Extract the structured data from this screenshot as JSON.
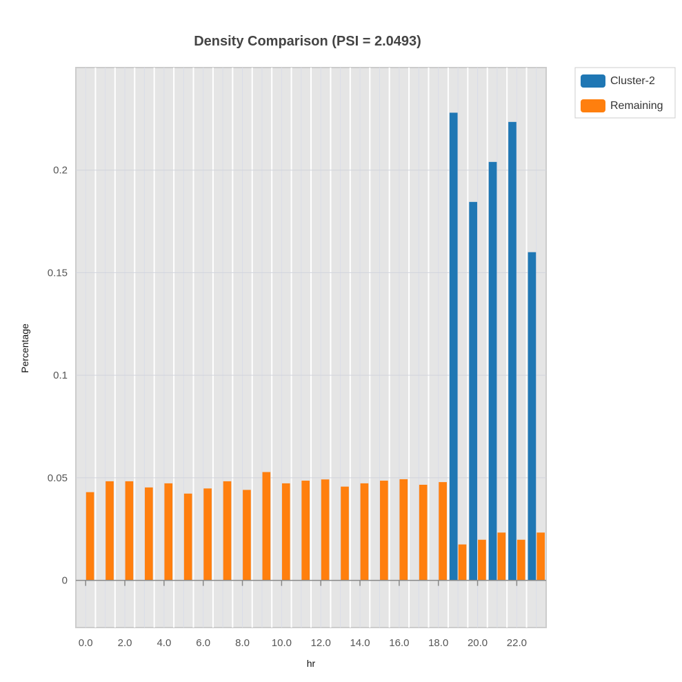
{
  "chart_data": {
    "type": "bar",
    "title": "Density Comparison (PSI = 2.0493)",
    "xlabel": "hr",
    "ylabel": "Percentage",
    "categories": [
      0,
      1,
      2,
      3,
      4,
      5,
      6,
      7,
      8,
      9,
      10,
      11,
      12,
      13,
      14,
      15,
      16,
      17,
      18,
      19,
      20,
      21,
      22,
      23
    ],
    "x_tick_labels": [
      "0.0",
      "2.0",
      "4.0",
      "6.0",
      "8.0",
      "10.0",
      "12.0",
      "14.0",
      "16.0",
      "18.0",
      "20.0",
      "22.0"
    ],
    "y_tick_values": [
      0,
      0.05,
      0.1,
      0.15,
      0.2
    ],
    "y_tick_labels": [
      "0",
      "0.05",
      "0.1",
      "0.15",
      "0.2"
    ],
    "ylim": [
      -0.023,
      0.25
    ],
    "xlim": [
      -0.5,
      23.5
    ],
    "series": [
      {
        "name": "Cluster-2",
        "color": "#1f77b4",
        "values": [
          0,
          0,
          0,
          0,
          0,
          0,
          0,
          0,
          0,
          0,
          0,
          0,
          0,
          0,
          0,
          0,
          0,
          0,
          0,
          0.228,
          0.1845,
          0.204,
          0.2235,
          0.16
        ]
      },
      {
        "name": "Remaining",
        "color": "#ff7f0e",
        "values": [
          0.043,
          0.0483,
          0.0483,
          0.0453,
          0.0473,
          0.0423,
          0.0448,
          0.0483,
          0.0441,
          0.0528,
          0.0473,
          0.0486,
          0.0492,
          0.0457,
          0.0473,
          0.0486,
          0.0493,
          0.0466,
          0.0479,
          0.0175,
          0.0198,
          0.0233,
          0.0198,
          0.0233
        ]
      }
    ],
    "legend_position": "top-right",
    "grid": true
  }
}
